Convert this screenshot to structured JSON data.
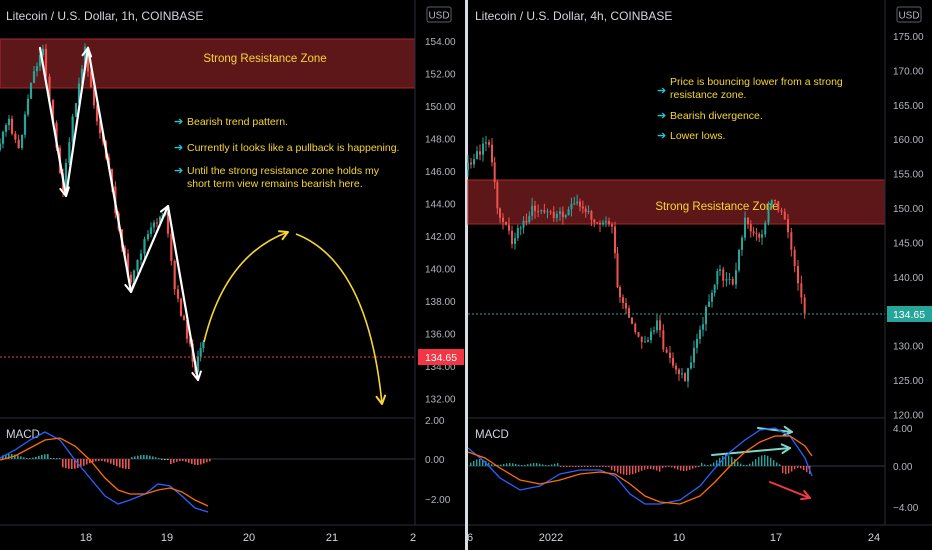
{
  "charts": [
    {
      "title": "Litecoin / U.S. Dollar, 1h, COINBASE",
      "currency": "USD",
      "price_label": "134.65",
      "price_color": "#f23645",
      "zone_label": "Strong Resistance Zone",
      "notes": [
        "Bearish trend pattern.",
        "Currently it looks like a pullback is happening.",
        "Until the strong resistance zone holds my",
        "short term view remains bearish here."
      ],
      "y_ticks": [
        "154.00",
        "152.00",
        "150.00",
        "148.00",
        "146.00",
        "144.00",
        "142.00",
        "140.00",
        "138.00",
        "136.00",
        "134.00",
        "132.00"
      ],
      "x_ticks": [
        "18",
        "19",
        "20",
        "21",
        "2"
      ],
      "macd_label": "MACD",
      "macd_ticks": [
        "2.00",
        "0.00",
        "−2.00"
      ]
    },
    {
      "title": "Litecoin / U.S. Dollar, 4h, COINBASE",
      "currency": "USD",
      "price_label": "134.65",
      "price_color": "#26a69a",
      "zone_label": "Strong Resistance Zone",
      "notes": [
        "Price is bouncing lower from a strong",
        "resistance zone.",
        "Bearish divergence.",
        "Lower lows."
      ],
      "y_ticks": [
        "175.00",
        "170.00",
        "165.00",
        "160.00",
        "155.00",
        "150.00",
        "145.00",
        "140.00",
        "135.00",
        "130.00",
        "125.00",
        "120.00"
      ],
      "x_ticks": [
        "6",
        "2022",
        "10",
        "17",
        "24"
      ],
      "macd_label": "MACD",
      "macd_ticks": [
        "4.00",
        "0.00",
        "−4.00"
      ]
    }
  ],
  "chart_data": [
    {
      "type": "candlestick",
      "title": "Litecoin / U.S. Dollar, 1h, COINBASE",
      "ylim": [
        131,
        156
      ],
      "last_price": 134.65,
      "resistance_zone": [
        151.0,
        154.1
      ],
      "path_closes": [
        149.5,
        146,
        154,
        145,
        153.5,
        146,
        143,
        138,
        143,
        144.5,
        139,
        136.5,
        135,
        134.5
      ],
      "macd_range": [
        -3,
        2.2
      ]
    },
    {
      "type": "candlestick",
      "title": "Litecoin / U.S. Dollar, 4h, COINBASE",
      "ylim": [
        120,
        178
      ],
      "last_price": 134.65,
      "resistance_zone": [
        147.5,
        154.0
      ],
      "path_closes": [
        155,
        160,
        150,
        148,
        147,
        149,
        148,
        150,
        149,
        147,
        146,
        145,
        134,
        130,
        132,
        127,
        125,
        130,
        135,
        140,
        145,
        148,
        150,
        148,
        147,
        152,
        150,
        145,
        138,
        135
      ],
      "macd_range": [
        -5,
        5
      ]
    }
  ]
}
